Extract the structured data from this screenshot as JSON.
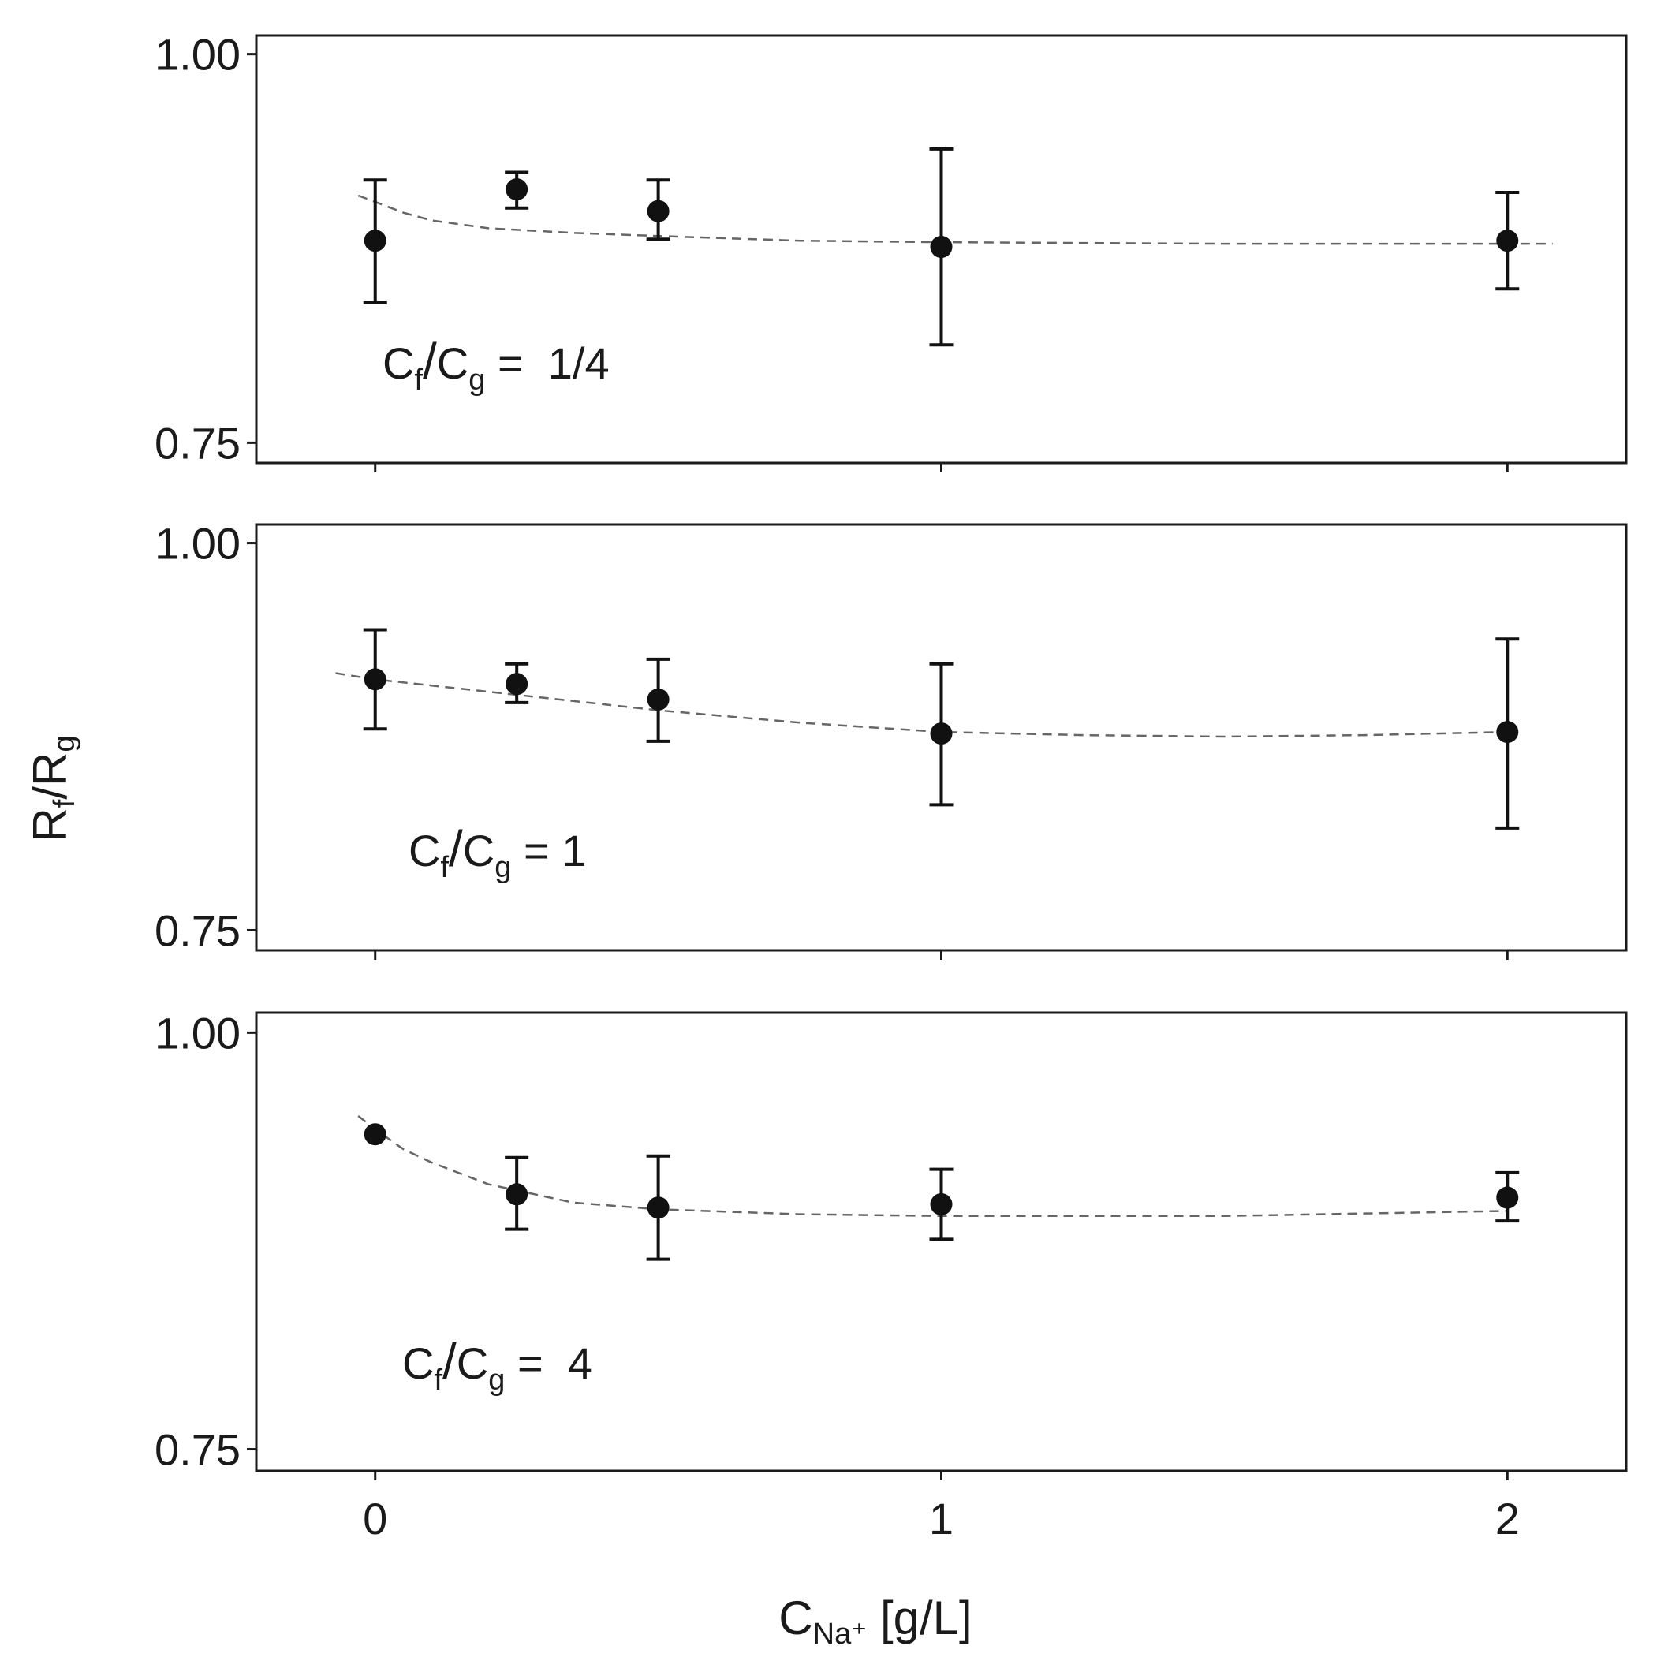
{
  "chart_data": {
    "type": "scatter",
    "xlabel": {
      "main": "C",
      "sub": "Na⁺",
      "unit": " [g/L]"
    },
    "ylabel": {
      "R": "R",
      "f": "f",
      "slash": "/",
      "R2": "R",
      "g": "g"
    },
    "x_ticks": [
      0,
      1,
      2
    ],
    "x_tick_labels": [
      "0",
      "1",
      "2"
    ],
    "xlim": [
      -0.21,
      2.21
    ],
    "ylim": [
      0.737,
      1.012
    ],
    "y_ticks": [
      1.0,
      0.75
    ],
    "y_tick_labels": [
      "1.00",
      "0.75"
    ],
    "panels": [
      {
        "annotation": {
          "c1": "C",
          "s1": "f",
          "slash": "/",
          "c2": "C",
          "s2": "g",
          "eq": " =  ",
          "ratio": "1/4"
        },
        "points": [
          {
            "x": 0.0,
            "y": 0.88,
            "lo": 0.84,
            "hi": 0.919
          },
          {
            "x": 0.25,
            "y": 0.913,
            "lo": 0.901,
            "hi": 0.924
          },
          {
            "x": 0.5,
            "y": 0.899,
            "lo": 0.881,
            "hi": 0.919
          },
          {
            "x": 1.0,
            "y": 0.876,
            "lo": 0.813,
            "hi": 0.939
          },
          {
            "x": 2.0,
            "y": 0.88,
            "lo": 0.849,
            "hi": 0.911
          }
        ],
        "fit": [
          {
            "x": -0.03,
            "y": 0.909
          },
          {
            "x": 0.0,
            "y": 0.905
          },
          {
            "x": 0.05,
            "y": 0.898
          },
          {
            "x": 0.1,
            "y": 0.893
          },
          {
            "x": 0.2,
            "y": 0.888
          },
          {
            "x": 0.35,
            "y": 0.885
          },
          {
            "x": 0.5,
            "y": 0.883
          },
          {
            "x": 0.75,
            "y": 0.88
          },
          {
            "x": 1.0,
            "y": 0.879
          },
          {
            "x": 1.5,
            "y": 0.878
          },
          {
            "x": 2.08,
            "y": 0.878
          }
        ]
      },
      {
        "annotation": {
          "c1": "C",
          "s1": "f",
          "slash": "/",
          "c2": "C",
          "s2": "g",
          "eq": " = ",
          "ratio": "1"
        },
        "points": [
          {
            "x": 0.0,
            "y": 0.912,
            "lo": 0.88,
            "hi": 0.944
          },
          {
            "x": 0.25,
            "y": 0.909,
            "lo": 0.897,
            "hi": 0.922
          },
          {
            "x": 0.5,
            "y": 0.899,
            "lo": 0.872,
            "hi": 0.925
          },
          {
            "x": 1.0,
            "y": 0.877,
            "lo": 0.831,
            "hi": 0.922
          },
          {
            "x": 2.0,
            "y": 0.878,
            "lo": 0.816,
            "hi": 0.938
          }
        ],
        "fit": [
          {
            "x": -0.07,
            "y": 0.916
          },
          {
            "x": 0.0,
            "y": 0.912
          },
          {
            "x": 0.25,
            "y": 0.902
          },
          {
            "x": 0.5,
            "y": 0.892
          },
          {
            "x": 0.75,
            "y": 0.884
          },
          {
            "x": 1.0,
            "y": 0.878
          },
          {
            "x": 1.25,
            "y": 0.876
          },
          {
            "x": 1.5,
            "y": 0.875
          },
          {
            "x": 1.75,
            "y": 0.876
          },
          {
            "x": 2.0,
            "y": 0.878
          }
        ]
      },
      {
        "annotation": {
          "c1": "C",
          "s1": "f",
          "slash": "/",
          "c2": "C",
          "s2": "g",
          "eq": " =  ",
          "ratio": "4"
        },
        "points": [
          {
            "x": 0.0,
            "y": 0.939,
            "lo": 0.939,
            "hi": 0.939
          },
          {
            "x": 0.25,
            "y": 0.903,
            "lo": 0.882,
            "hi": 0.925
          },
          {
            "x": 0.5,
            "y": 0.895,
            "lo": 0.864,
            "hi": 0.926
          },
          {
            "x": 1.0,
            "y": 0.897,
            "lo": 0.876,
            "hi": 0.918
          },
          {
            "x": 2.0,
            "y": 0.901,
            "lo": 0.887,
            "hi": 0.916
          }
        ],
        "fit": [
          {
            "x": -0.03,
            "y": 0.95
          },
          {
            "x": 0.0,
            "y": 0.942
          },
          {
            "x": 0.05,
            "y": 0.93
          },
          {
            "x": 0.1,
            "y": 0.922
          },
          {
            "x": 0.2,
            "y": 0.909
          },
          {
            "x": 0.35,
            "y": 0.898
          },
          {
            "x": 0.5,
            "y": 0.894
          },
          {
            "x": 0.75,
            "y": 0.891
          },
          {
            "x": 1.0,
            "y": 0.89
          },
          {
            "x": 1.5,
            "y": 0.89
          },
          {
            "x": 2.0,
            "y": 0.893
          }
        ]
      }
    ]
  }
}
